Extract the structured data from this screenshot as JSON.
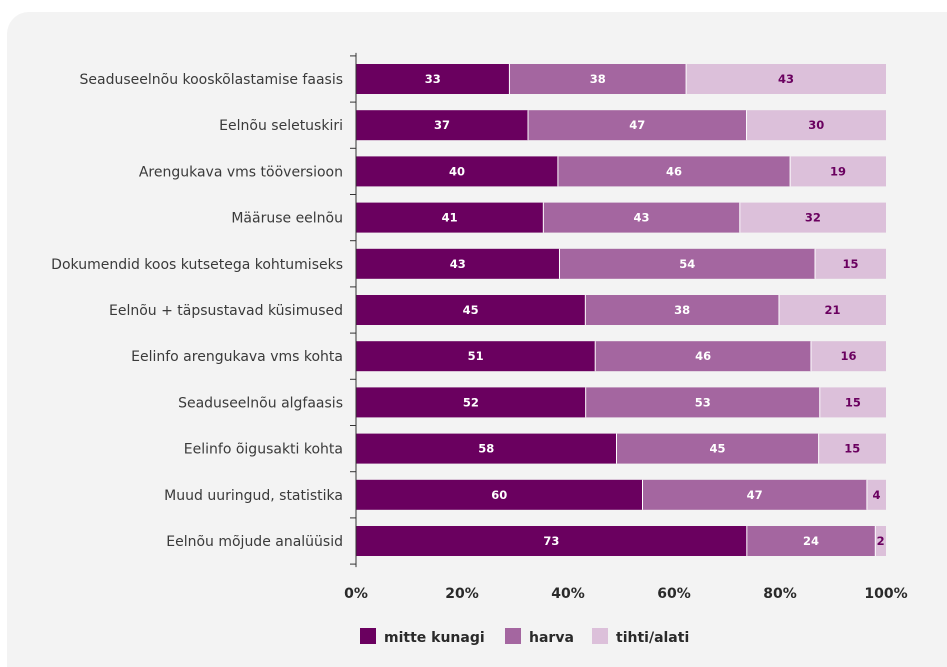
{
  "chart_data": {
    "type": "bar",
    "orientation": "horizontal",
    "stacked": true,
    "normalized": true,
    "categories": [
      "Seaduseelnõu kooskõlastamise faasis",
      "Eelnõu seletuskiri",
      "Arengukava vms tööversioon",
      "Määruse eelnõu",
      "Dokumendid koos kutsetega kohtumiseks",
      "Eelnõu + täpsustavad küsimused",
      "Eelinfo arengukava vms kohta",
      "Seaduseelnõu algfaasis",
      "Eelinfo õigusakti kohta",
      "Muud uuringud, statistika",
      "Eelnõu mõjude analüüsid"
    ],
    "series": [
      {
        "name": "mitte kunagi",
        "values": [
          33,
          37,
          40,
          41,
          43,
          45,
          51,
          52,
          58,
          60,
          73
        ],
        "color": "#6a005f",
        "label_color": "#ffffff"
      },
      {
        "name": "harva",
        "values": [
          38,
          47,
          46,
          43,
          54,
          38,
          46,
          53,
          45,
          47,
          24
        ],
        "color": "#a466a0",
        "label_color": "#ffffff"
      },
      {
        "name": "tihti/alati",
        "values": [
          43,
          30,
          19,
          32,
          15,
          21,
          16,
          15,
          15,
          4,
          2
        ],
        "color": "#dcc0da",
        "label_color": "#6a005f"
      }
    ],
    "x_ticks": [
      "0%",
      "20%",
      "40%",
      "60%",
      "80%",
      "100%"
    ],
    "xlim": [
      0,
      100
    ],
    "grid": false,
    "legend_position": "bottom"
  }
}
